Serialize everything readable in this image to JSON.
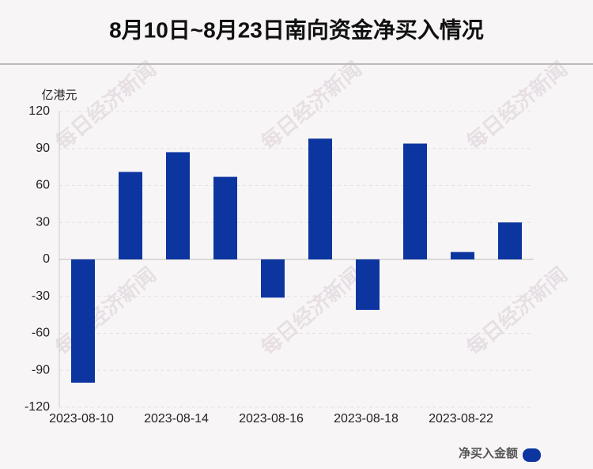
{
  "chart_data": {
    "type": "bar",
    "title": "8月10日~8月23日南向资金净买入情况",
    "y_label": "亿港元",
    "watermark": "每日经济新闻",
    "categories": [
      "2023-08-10",
      null,
      "2023-08-14",
      null,
      "2023-08-16",
      null,
      "2023-08-18",
      null,
      "2023-08-22",
      null
    ],
    "series": [
      {
        "name": "净买入金额",
        "color": "#0c35a0",
        "values": [
          -100,
          71,
          87,
          67,
          -31,
          98,
          -41,
          94,
          6,
          30
        ]
      }
    ],
    "ylim": [
      -120,
      120
    ],
    "yticks": [
      -120,
      -90,
      -60,
      -30,
      0,
      30,
      60,
      90,
      120
    ],
    "grid": true,
    "legend": "bottom-right"
  }
}
